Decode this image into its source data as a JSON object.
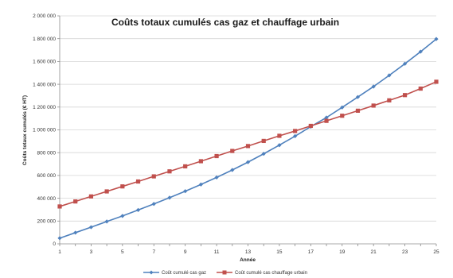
{
  "chart_data": {
    "type": "line",
    "title": "Coûts totaux cumulés cas gaz et chauffage urbain",
    "xlabel": "Année",
    "ylabel": "Coûts totaux cumulés (€ HT)",
    "x": [
      1,
      2,
      3,
      4,
      5,
      6,
      7,
      8,
      9,
      10,
      11,
      12,
      13,
      14,
      15,
      16,
      17,
      18,
      19,
      20,
      21,
      22,
      23,
      24,
      25
    ],
    "x_ticks": [
      "1",
      "3",
      "5",
      "7",
      "9",
      "11",
      "13",
      "15",
      "17",
      "19",
      "21",
      "23",
      "25"
    ],
    "y_ticks": [
      "0",
      "200 000",
      "400 000",
      "600 000",
      "800 000",
      "1 000 000",
      "1 200 000",
      "1 400 000",
      "1 600 000",
      "1 800 000",
      "2 000 000"
    ],
    "ylim": [
      0,
      2000000
    ],
    "xlim": [
      1,
      25
    ],
    "grid": true,
    "legend_position": "bottom",
    "series": [
      {
        "name": "Coût cumulé cas gaz",
        "color": "#4f81bd",
        "marker": "diamond",
        "values": [
          50000,
          98000,
          146000,
          196000,
          245000,
          297000,
          350000,
          405000,
          462000,
          521000,
          583000,
          648000,
          717000,
          790000,
          866000,
          945000,
          1028000,
          1108000,
          1197000,
          1288000,
          1380000,
          1478000,
          1580000,
          1686000,
          1797000
        ]
      },
      {
        "name": "Coût cumulé cas chauffage urbain",
        "color": "#c0504d",
        "marker": "square",
        "values": [
          328000,
          372000,
          416000,
          460000,
          504000,
          547000,
          592000,
          636000,
          680000,
          725000,
          770000,
          815000,
          858000,
          903000,
          948000,
          990000,
          1035000,
          1079000,
          1124000,
          1168000,
          1213000,
          1259000,
          1305000,
          1362000,
          1422000
        ]
      }
    ]
  }
}
